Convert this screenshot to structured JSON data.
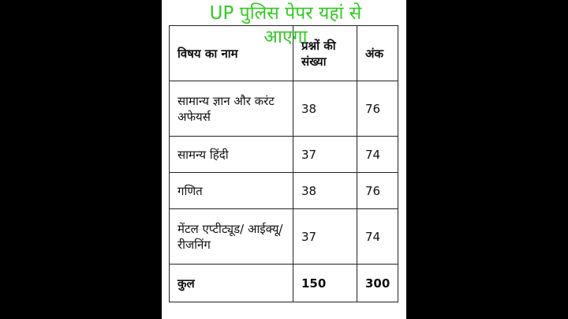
{
  "overlay": {
    "line1": "UP पुलिस पेपर यहां से",
    "line2": "आएगा"
  },
  "table": {
    "headers": [
      "विषय का नाम",
      "प्रश्नों की संख्या",
      "अंक"
    ],
    "rows": [
      {
        "subject": "सामान्य ज्ञान और करंट अफेयर्स",
        "questions": "38",
        "marks": "76"
      },
      {
        "subject": "सामन्य हिंदी",
        "questions": "37",
        "marks": "74"
      },
      {
        "subject": "गणित",
        "questions": "38",
        "marks": "76"
      },
      {
        "subject": "मेंटल एप्टीट्यूड/ आईक्यू/रीजनिंग",
        "questions": "37",
        "marks": "74"
      }
    ],
    "total": {
      "label": "कुल",
      "questions": "150",
      "marks": "300"
    }
  }
}
